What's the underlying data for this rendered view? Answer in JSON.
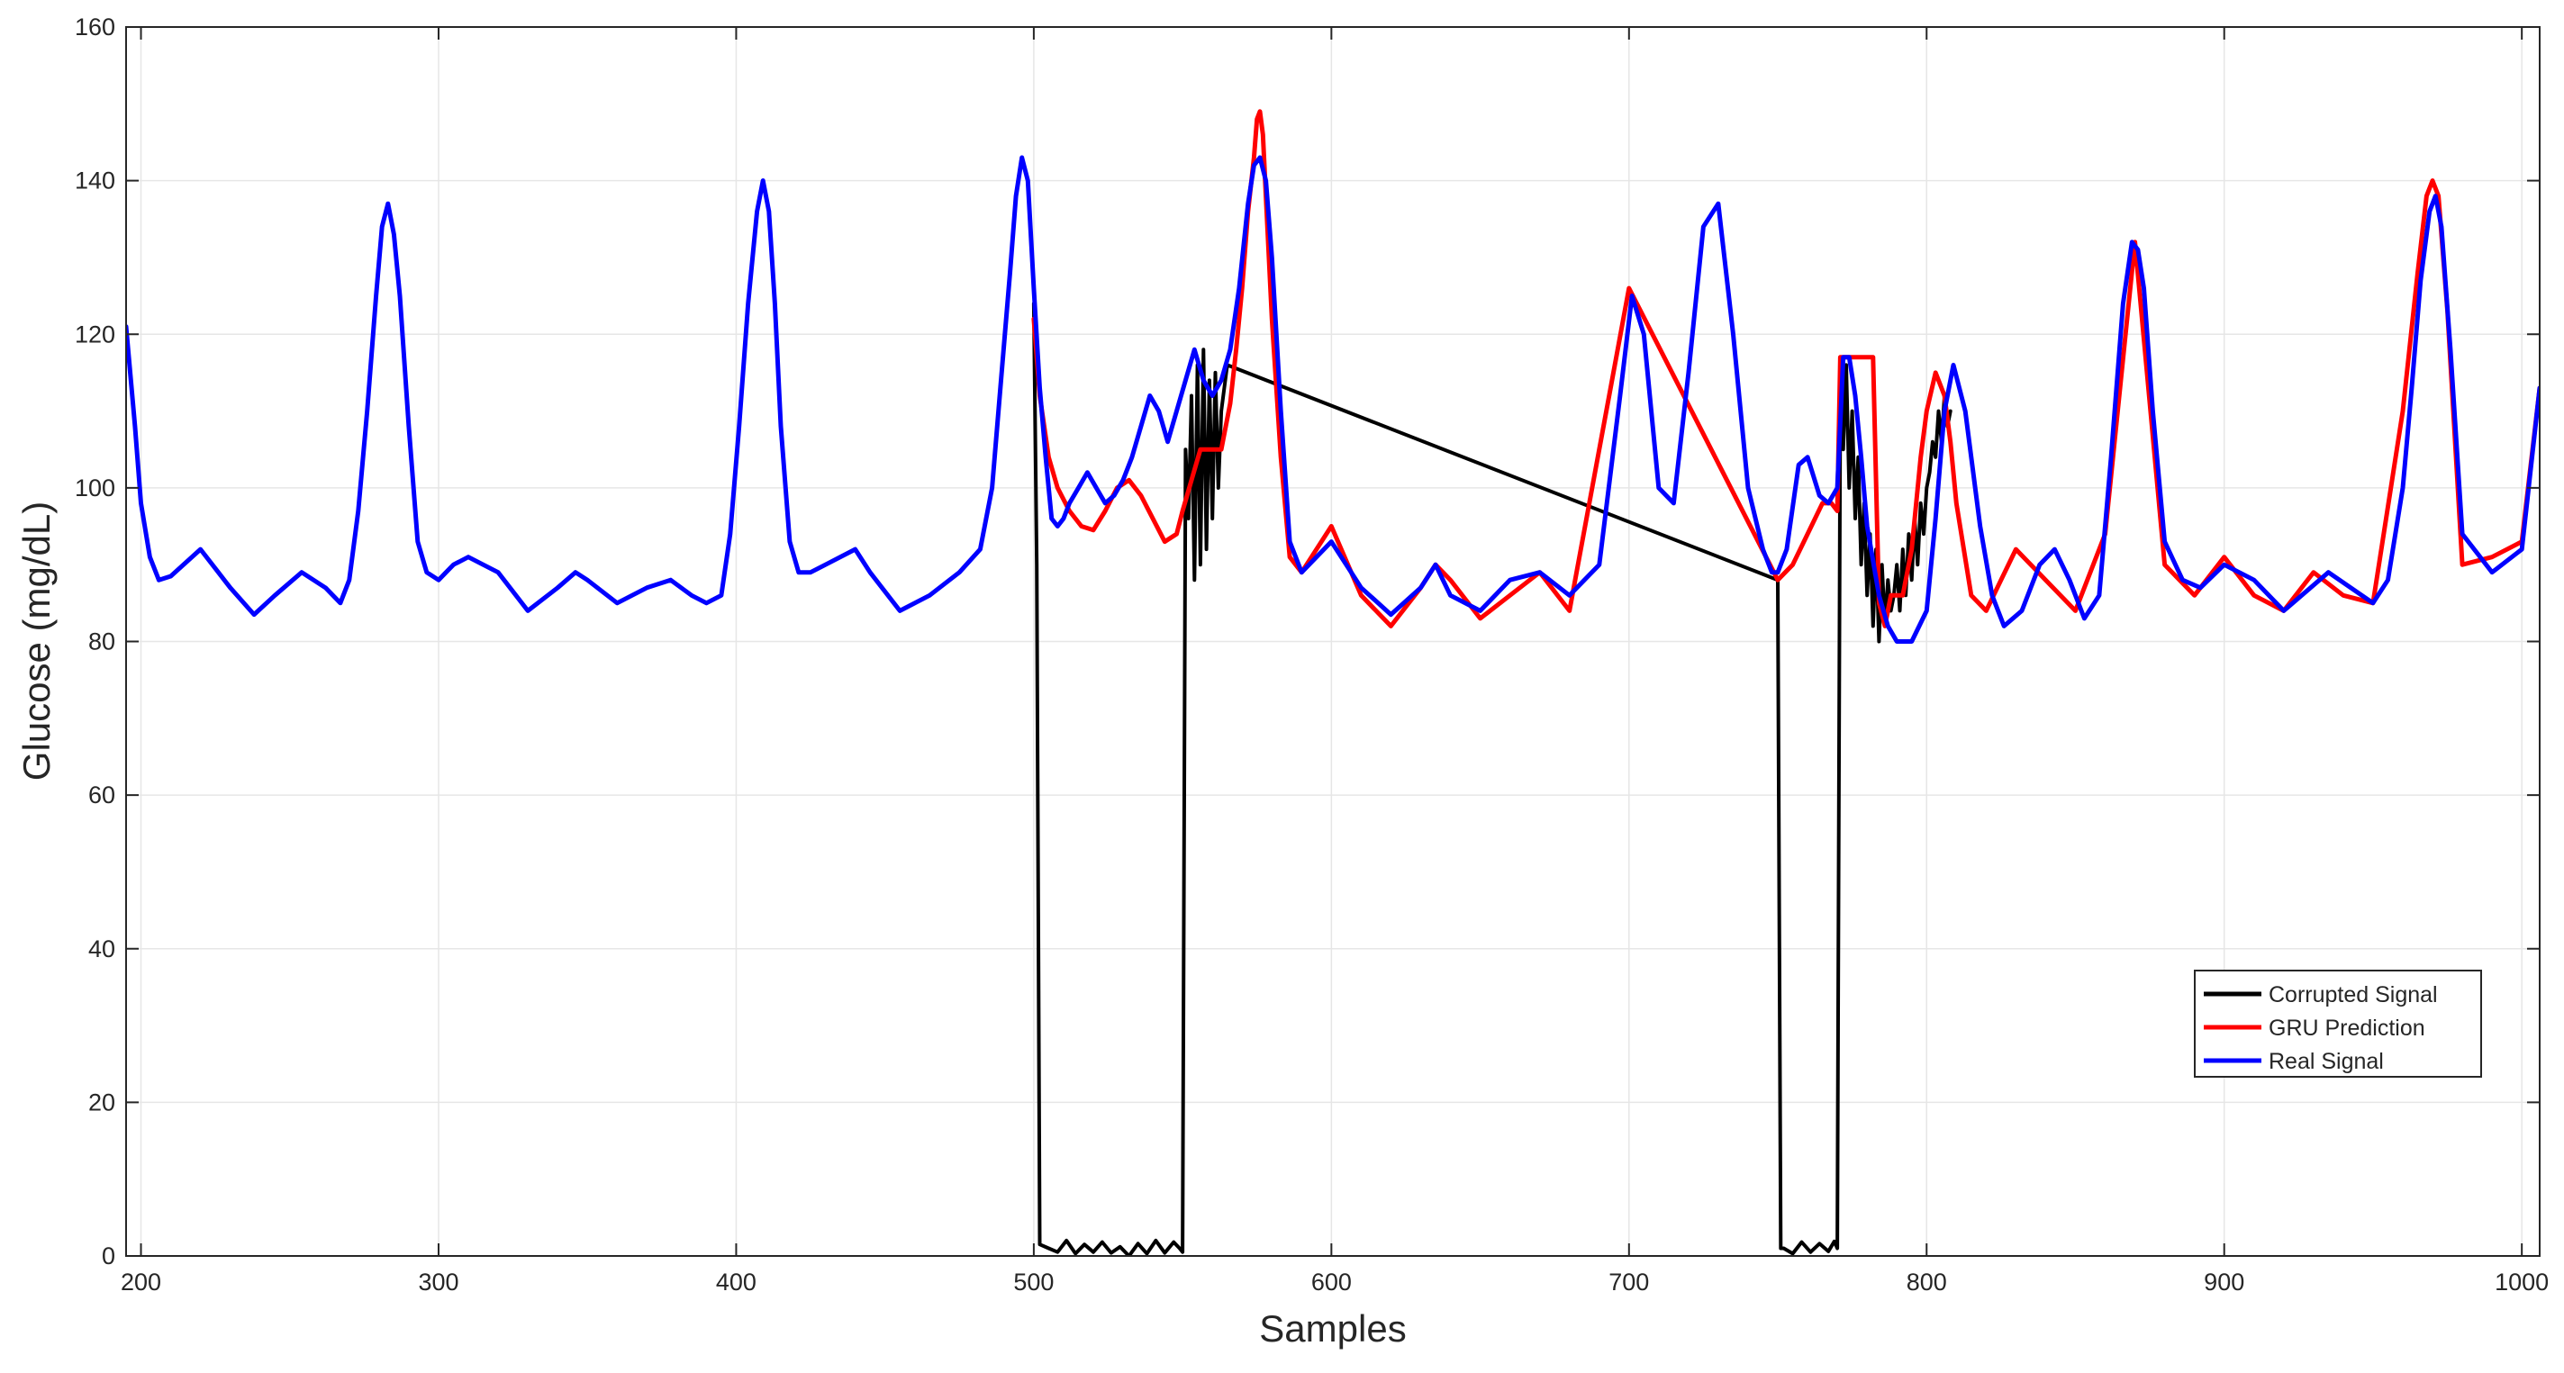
{
  "chart_data": {
    "type": "line",
    "title": "",
    "xlabel": "Samples",
    "ylabel": "Glucose (mg/dL)",
    "xlim": [
      195,
      1006
    ],
    "ylim": [
      0,
      160
    ],
    "grid": true,
    "legend_position": "bottom-right",
    "xticks": [
      200,
      300,
      400,
      500,
      600,
      700,
      800,
      900,
      1000
    ],
    "yticks": [
      0,
      20,
      40,
      60,
      80,
      100,
      120,
      140,
      160
    ],
    "xtick_labels": [
      "200",
      "300",
      "400",
      "500",
      "600",
      "700",
      "800",
      "900",
      "1000"
    ],
    "ytick_labels": [
      "0",
      "20",
      "40",
      "60",
      "80",
      "100",
      "120",
      "140",
      "160"
    ],
    "colors": {
      "Corrupted Signal": "#000000",
      "GRU Prediction": "#ff0000",
      "Real Signal": "#0000ff"
    },
    "series": [
      {
        "name": "Corrupted Signal",
        "color": "#000000",
        "x": [
          500,
          501,
          502,
          505,
          508,
          511,
          514,
          517,
          520,
          523,
          526,
          529,
          532,
          535,
          538,
          541,
          544,
          547,
          549,
          550,
          551,
          552,
          553,
          554,
          555,
          556,
          557,
          558,
          559,
          560,
          561,
          562,
          563,
          565,
          750,
          751,
          752,
          755,
          758,
          761,
          764,
          767,
          769,
          770,
          771,
          772,
          773,
          774,
          775,
          776,
          777,
          778,
          779,
          780,
          781,
          782,
          783,
          784,
          785,
          786,
          787,
          788,
          789,
          790,
          791,
          792,
          793,
          794,
          795,
          796,
          797,
          798,
          799,
          800,
          801,
          802,
          803,
          804,
          805,
          806,
          807,
          808
        ],
        "y": [
          124,
          90,
          1.5,
          1,
          0.5,
          2,
          0.3,
          1.5,
          0.5,
          1.8,
          0.4,
          1.2,
          0,
          1.6,
          0.3,
          2,
          0.4,
          1.8,
          1,
          0.5,
          105,
          96,
          112,
          88,
          116,
          90,
          118,
          92,
          114,
          96,
          115,
          100,
          110,
          116,
          88,
          1,
          1,
          0.3,
          1.8,
          0.5,
          1.6,
          0.6,
          1.9,
          1,
          112,
          105,
          116,
          100,
          110,
          96,
          104,
          90,
          98,
          86,
          94,
          82,
          92,
          80,
          90,
          82,
          88,
          84,
          86,
          90,
          84,
          92,
          86,
          94,
          88,
          96,
          90,
          98,
          94,
          100,
          102,
          106,
          104,
          110,
          106,
          112,
          108,
          110
        ]
      },
      {
        "name": "GRU Prediction",
        "color": "#ff0000",
        "x": [
          500,
          502,
          505,
          508,
          512,
          516,
          520,
          524,
          528,
          532,
          536,
          540,
          544,
          548,
          550,
          553,
          556,
          560,
          563,
          566,
          568,
          570,
          572,
          574,
          575,
          576,
          577,
          578,
          580,
          583,
          586,
          590,
          600,
          610,
          620,
          630,
          635,
          640,
          650,
          660,
          670,
          680,
          700,
          750,
          755,
          760,
          765,
          768,
          770,
          771,
          772,
          773,
          774,
          776,
          778,
          780,
          782,
          784,
          786,
          788,
          790,
          792,
          795,
          798,
          800,
          803,
          806,
          808,
          810,
          815,
          820,
          825,
          830,
          840,
          850,
          860,
          870,
          880,
          890,
          900,
          910,
          920,
          930,
          940,
          950,
          960,
          965,
          968,
          970,
          972,
          975,
          980,
          990,
          1000,
          1006
        ],
        "y": [
          122,
          112,
          104,
          100,
          97,
          95,
          94.5,
          97,
          100,
          101,
          99,
          96,
          93,
          94,
          97,
          101,
          105,
          105,
          105,
          111,
          118,
          126,
          136,
          143,
          148,
          149,
          146,
          138,
          122,
          104,
          91,
          89,
          95,
          86,
          82,
          87,
          90,
          88,
          83,
          86,
          89,
          84,
          126,
          88,
          90,
          94,
          98,
          98,
          97,
          117,
          117,
          117,
          117,
          117,
          117,
          117,
          117,
          85,
          82,
          86,
          86,
          86,
          92,
          104,
          110,
          115,
          112,
          106,
          98,
          86,
          84,
          88,
          92,
          88,
          84,
          94,
          132,
          90,
          86,
          91,
          86,
          84,
          89,
          86,
          85,
          110,
          128,
          138,
          140,
          138,
          123,
          90,
          91,
          93,
          113
        ]
      },
      {
        "name": "Real Signal",
        "color": "#0000ff",
        "x": [
          195,
          198,
          200,
          203,
          206,
          210,
          220,
          230,
          238,
          245,
          254,
          262,
          267,
          270,
          273,
          276,
          279,
          281,
          283,
          285,
          287,
          290,
          293,
          296,
          300,
          305,
          310,
          320,
          330,
          340,
          346,
          350,
          360,
          370,
          378,
          385,
          390,
          395,
          398,
          401,
          404,
          407,
          409,
          411,
          413,
          415,
          418,
          421,
          425,
          430,
          440,
          445,
          455,
          465,
          475,
          482,
          486,
          489,
          492,
          494,
          496,
          498,
          500,
          502,
          504,
          506,
          508,
          510,
          512,
          515,
          518,
          521,
          524,
          527,
          530,
          533,
          536,
          539,
          542,
          545,
          548,
          551,
          554,
          557,
          560,
          563,
          566,
          569,
          572,
          574,
          576,
          578,
          580,
          583,
          586,
          590,
          600,
          610,
          620,
          630,
          635,
          640,
          650,
          660,
          670,
          680,
          690,
          697,
          701,
          705,
          710,
          715,
          720,
          725,
          730,
          735,
          740,
          745,
          748,
          750,
          753,
          757,
          760,
          764,
          767,
          770,
          772,
          774,
          776,
          778,
          780,
          784,
          787,
          790,
          795,
          800,
          803,
          806,
          809,
          813,
          818,
          822,
          826,
          832,
          838,
          843,
          848,
          853,
          858,
          862,
          866,
          869,
          871,
          873,
          876,
          880,
          886,
          892,
          900,
          910,
          920,
          935,
          950,
          955,
          960,
          963,
          966,
          969,
          971,
          973,
          976,
          980,
          990,
          1000,
          1006
        ],
        "y": [
          121,
          108,
          98,
          91,
          88,
          88.5,
          92,
          87,
          83.5,
          86,
          89,
          87,
          85,
          88,
          97,
          110,
          125,
          134,
          137,
          133,
          125,
          108,
          93,
          89,
          88,
          90,
          91,
          89,
          84,
          87,
          89,
          88,
          85,
          87,
          88,
          86,
          85,
          86,
          94,
          108,
          124,
          136,
          140,
          136,
          124,
          108,
          93,
          89,
          89,
          90,
          92,
          89,
          84,
          86,
          89,
          92,
          100,
          114,
          128,
          138,
          143,
          140,
          126,
          113,
          104,
          96,
          95,
          96,
          98,
          100,
          102,
          100,
          98,
          99,
          101,
          104,
          108,
          112,
          110,
          106,
          110,
          114,
          118,
          114,
          112,
          114,
          118,
          126,
          137,
          142,
          143,
          140,
          130,
          110,
          93,
          89,
          93,
          87,
          83.5,
          87,
          90,
          86,
          84,
          88,
          89,
          86,
          90,
          112,
          125,
          120,
          100,
          98,
          115,
          134,
          137,
          120,
          100,
          92,
          89,
          89,
          92,
          103,
          104,
          99,
          98,
          100,
          117,
          117,
          112,
          104,
          95,
          86,
          82,
          80,
          80,
          84,
          96,
          110,
          116,
          110,
          95,
          86,
          82,
          84,
          90,
          92,
          88,
          83,
          86,
          104,
          124,
          132,
          131,
          126,
          110,
          93,
          88,
          87,
          90,
          88,
          84,
          89,
          85,
          88,
          100,
          113,
          127,
          136,
          138,
          134,
          118,
          94,
          89,
          92,
          113
        ]
      }
    ]
  }
}
